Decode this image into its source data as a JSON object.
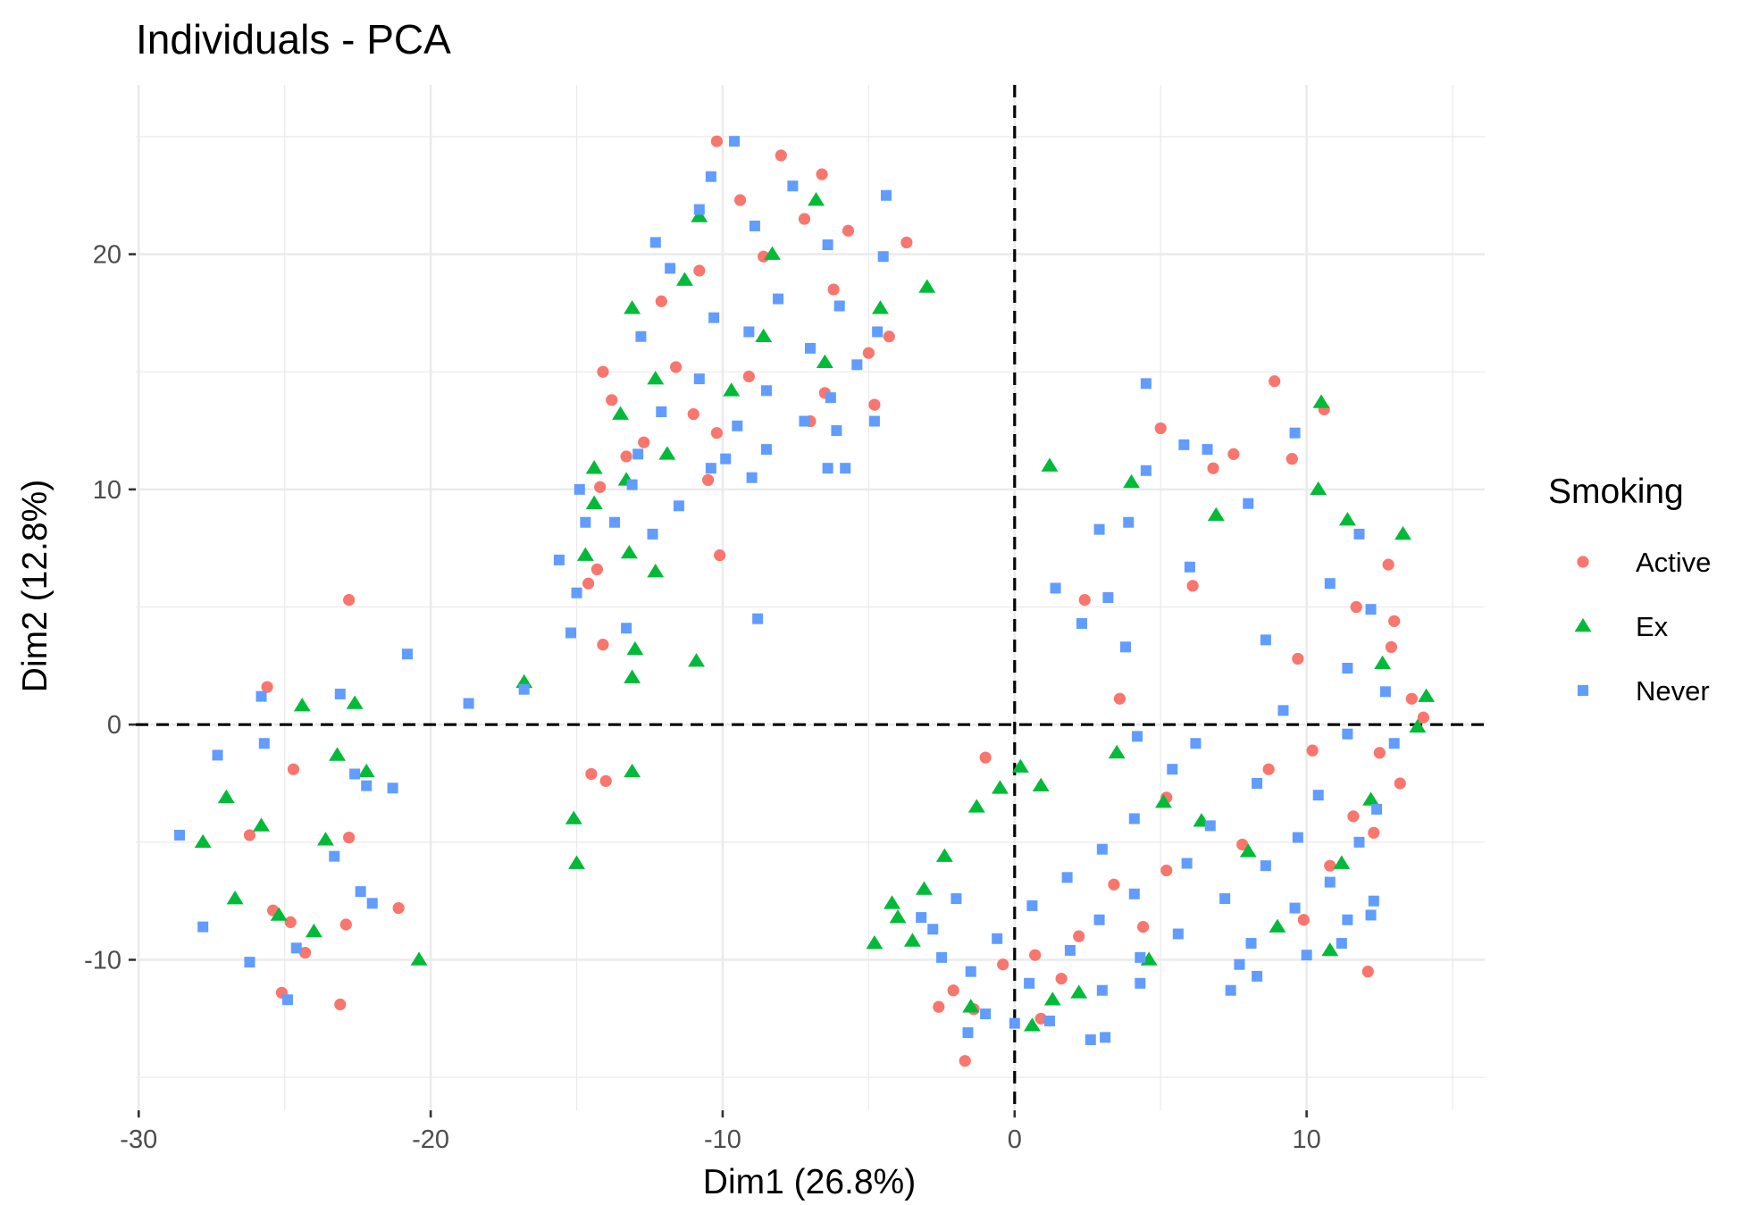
{
  "chart_data": {
    "type": "scatter",
    "title": "Individuals - PCA",
    "xlabel": "Dim1 (26.8%)",
    "ylabel": "Dim2 (12.8%)",
    "xlim": [
      -30.1,
      16.1
    ],
    "ylim": [
      -16.4,
      27.2
    ],
    "x_ticks": [
      -30,
      -20,
      -10,
      0,
      10
    ],
    "y_ticks": [
      -10,
      0,
      10,
      20
    ],
    "x_tick_labels": [
      "-30",
      "-20",
      "-10",
      "0",
      "10"
    ],
    "y_tick_labels": [
      "-10",
      "0",
      "10",
      "20"
    ],
    "grid": true,
    "reference_lines": {
      "x": 0,
      "y": 0,
      "style": "dashed"
    },
    "legend": {
      "title": "Smoking",
      "position": "right",
      "entries": [
        {
          "label": "Active",
          "shape": "circle",
          "color": "#F8766D"
        },
        {
          "label": "Ex",
          "shape": "triangle",
          "color": "#00BA38"
        },
        {
          "label": "Never",
          "shape": "square",
          "color": "#619CFF"
        }
      ]
    },
    "series": [
      {
        "name": "Active",
        "shape": "circle",
        "color": "#F8766D",
        "points": [
          [
            -25.6,
            1.6
          ],
          [
            -24.7,
            -1.9
          ],
          [
            -26.2,
            -4.7
          ],
          [
            -25.4,
            -7.9
          ],
          [
            -24.3,
            -9.7
          ],
          [
            -25.1,
            -11.4
          ],
          [
            -23.1,
            -11.9
          ],
          [
            -22.8,
            5.3
          ],
          [
            -22.8,
            -4.8
          ],
          [
            -22.9,
            -8.5
          ],
          [
            -21.1,
            -7.8
          ],
          [
            -24.8,
            -8.4
          ],
          [
            -10.2,
            24.8
          ],
          [
            -8.0,
            24.2
          ],
          [
            -6.6,
            23.4
          ],
          [
            -9.4,
            22.3
          ],
          [
            -7.2,
            21.5
          ],
          [
            -5.7,
            21.0
          ],
          [
            -8.6,
            19.9
          ],
          [
            -10.8,
            19.3
          ],
          [
            -6.2,
            18.5
          ],
          [
            -3.7,
            20.5
          ],
          [
            -12.1,
            18.0
          ],
          [
            -4.3,
            16.5
          ],
          [
            -5.0,
            15.8
          ],
          [
            -11.6,
            15.2
          ],
          [
            -9.1,
            14.8
          ],
          [
            -14.1,
            15.0
          ],
          [
            -13.8,
            13.8
          ],
          [
            -6.5,
            14.1
          ],
          [
            -4.8,
            13.6
          ],
          [
            -11.0,
            13.2
          ],
          [
            -10.2,
            12.4
          ],
          [
            -7.0,
            12.9
          ],
          [
            -12.7,
            12.0
          ],
          [
            -13.3,
            11.4
          ],
          [
            -10.5,
            10.4
          ],
          [
            -14.2,
            10.1
          ],
          [
            -10.1,
            7.2
          ],
          [
            -14.3,
            6.6
          ],
          [
            -14.6,
            6.0
          ],
          [
            -14.1,
            3.4
          ],
          [
            -14.5,
            -2.1
          ],
          [
            -14.0,
            -2.4
          ],
          [
            8.9,
            14.6
          ],
          [
            10.6,
            13.4
          ],
          [
            5.0,
            12.6
          ],
          [
            7.5,
            11.5
          ],
          [
            9.5,
            11.3
          ],
          [
            6.8,
            10.9
          ],
          [
            12.8,
            6.8
          ],
          [
            6.1,
            5.9
          ],
          [
            2.4,
            5.3
          ],
          [
            11.7,
            5.0
          ],
          [
            13.0,
            4.4
          ],
          [
            12.9,
            3.3
          ],
          [
            9.7,
            2.8
          ],
          [
            13.6,
            1.1
          ],
          [
            3.6,
            1.1
          ],
          [
            14.0,
            0.3
          ],
          [
            10.2,
            -1.1
          ],
          [
            12.5,
            -1.2
          ],
          [
            13.2,
            -2.5
          ],
          [
            11.6,
            -3.9
          ],
          [
            12.3,
            -4.6
          ],
          [
            7.8,
            -5.1
          ],
          [
            5.2,
            -6.2
          ],
          [
            3.4,
            -6.8
          ],
          [
            9.9,
            -8.3
          ],
          [
            4.4,
            -8.6
          ],
          [
            2.2,
            -9.0
          ],
          [
            0.7,
            -9.8
          ],
          [
            -0.4,
            -10.2
          ],
          [
            1.6,
            -10.8
          ],
          [
            -2.1,
            -11.3
          ],
          [
            -1.4,
            -12.1
          ],
          [
            -2.6,
            -12.0
          ],
          [
            0.9,
            -12.5
          ],
          [
            -1.7,
            -14.3
          ],
          [
            12.1,
            -10.5
          ],
          [
            -1.0,
            -1.4
          ],
          [
            5.2,
            -3.1
          ],
          [
            8.7,
            -1.9
          ],
          [
            10.8,
            -6.0
          ]
        ]
      },
      {
        "name": "Ex",
        "shape": "triangle",
        "color": "#00BA38",
        "points": [
          [
            -24.4,
            0.8
          ],
          [
            -22.6,
            0.9
          ],
          [
            -23.2,
            -1.3
          ],
          [
            -27.0,
            -3.1
          ],
          [
            -25.8,
            -4.3
          ],
          [
            -23.6,
            -4.9
          ],
          [
            -26.7,
            -7.4
          ],
          [
            -25.2,
            -8.1
          ],
          [
            -24.0,
            -8.8
          ],
          [
            -22.2,
            -2.0
          ],
          [
            -20.4,
            -10.0
          ],
          [
            -27.8,
            -5.0
          ],
          [
            -6.8,
            22.3
          ],
          [
            -8.3,
            20.0
          ],
          [
            -10.8,
            21.6
          ],
          [
            -3.0,
            18.6
          ],
          [
            -13.1,
            17.7
          ],
          [
            -11.3,
            18.9
          ],
          [
            -4.6,
            17.7
          ],
          [
            -8.6,
            16.5
          ],
          [
            -6.5,
            15.4
          ],
          [
            -12.3,
            14.7
          ],
          [
            -9.7,
            14.2
          ],
          [
            -13.5,
            13.2
          ],
          [
            -11.9,
            11.5
          ],
          [
            -14.4,
            10.9
          ],
          [
            -14.4,
            9.4
          ],
          [
            -13.3,
            10.4
          ],
          [
            -14.7,
            7.2
          ],
          [
            -13.2,
            7.3
          ],
          [
            -12.3,
            6.5
          ],
          [
            -13.0,
            3.2
          ],
          [
            -10.9,
            2.7
          ],
          [
            -13.1,
            2.0
          ],
          [
            -16.8,
            1.8
          ],
          [
            -13.1,
            -2.0
          ],
          [
            -15.1,
            -4.0
          ],
          [
            -15.0,
            -5.9
          ],
          [
            10.5,
            13.7
          ],
          [
            1.2,
            11.0
          ],
          [
            13.3,
            8.1
          ],
          [
            10.4,
            10.0
          ],
          [
            4.0,
            10.3
          ],
          [
            11.4,
            8.7
          ],
          [
            6.9,
            8.9
          ],
          [
            14.1,
            1.2
          ],
          [
            12.6,
            2.6
          ],
          [
            13.8,
            -0.1
          ],
          [
            -4.8,
            -9.3
          ],
          [
            -4.0,
            -8.2
          ],
          [
            -3.5,
            -9.2
          ],
          [
            -4.2,
            -7.6
          ],
          [
            -2.4,
            -5.6
          ],
          [
            -3.1,
            -7.0
          ],
          [
            -1.3,
            -3.5
          ],
          [
            -0.5,
            -2.7
          ],
          [
            0.2,
            -1.8
          ],
          [
            0.9,
            -2.6
          ],
          [
            3.5,
            -1.2
          ],
          [
            5.1,
            -3.3
          ],
          [
            6.4,
            -4.1
          ],
          [
            8.0,
            -5.4
          ],
          [
            11.2,
            -5.9
          ],
          [
            12.2,
            -3.2
          ],
          [
            10.8,
            -9.6
          ],
          [
            9.0,
            -8.6
          ],
          [
            4.6,
            -10.0
          ],
          [
            2.2,
            -11.4
          ],
          [
            -1.5,
            -12.0
          ],
          [
            0.6,
            -12.8
          ],
          [
            1.3,
            -11.7
          ]
        ]
      },
      {
        "name": "Never",
        "shape": "square",
        "color": "#619CFF",
        "points": [
          [
            -28.6,
            -4.7
          ],
          [
            -27.3,
            -1.3
          ],
          [
            -25.8,
            1.2
          ],
          [
            -25.7,
            -0.8
          ],
          [
            -23.1,
            1.3
          ],
          [
            -22.6,
            -2.1
          ],
          [
            -22.2,
            -2.6
          ],
          [
            -21.3,
            -2.7
          ],
          [
            -23.3,
            -5.6
          ],
          [
            -22.4,
            -7.1
          ],
          [
            -27.8,
            -8.6
          ],
          [
            -26.2,
            -10.1
          ],
          [
            -24.6,
            -9.5
          ],
          [
            -24.9,
            -11.7
          ],
          [
            -20.8,
            3.0
          ],
          [
            -18.7,
            0.9
          ],
          [
            -16.8,
            1.5
          ],
          [
            -22.0,
            -7.6
          ],
          [
            -9.6,
            24.8
          ],
          [
            -7.6,
            22.9
          ],
          [
            -10.4,
            23.3
          ],
          [
            -4.4,
            22.5
          ],
          [
            -10.8,
            21.9
          ],
          [
            -12.3,
            20.5
          ],
          [
            -8.9,
            21.2
          ],
          [
            -6.4,
            20.4
          ],
          [
            -4.5,
            19.9
          ],
          [
            -11.8,
            19.4
          ],
          [
            -10.3,
            17.3
          ],
          [
            -8.1,
            18.1
          ],
          [
            -6.0,
            17.8
          ],
          [
            -4.7,
            16.7
          ],
          [
            -12.8,
            16.5
          ],
          [
            -9.1,
            16.7
          ],
          [
            -7.0,
            16.0
          ],
          [
            -5.4,
            15.3
          ],
          [
            -10.8,
            14.7
          ],
          [
            -8.5,
            14.2
          ],
          [
            -6.3,
            13.9
          ],
          [
            -12.1,
            13.3
          ],
          [
            -9.5,
            12.7
          ],
          [
            -7.2,
            12.9
          ],
          [
            -6.1,
            12.5
          ],
          [
            -4.8,
            12.9
          ],
          [
            -12.9,
            11.5
          ],
          [
            -10.4,
            10.9
          ],
          [
            -8.5,
            11.7
          ],
          [
            -6.4,
            10.9
          ],
          [
            -13.1,
            10.2
          ],
          [
            -11.5,
            9.3
          ],
          [
            -9.0,
            10.5
          ],
          [
            -14.9,
            10.0
          ],
          [
            -14.7,
            8.6
          ],
          [
            -13.7,
            8.6
          ],
          [
            -12.4,
            8.1
          ],
          [
            -15.6,
            7.0
          ],
          [
            -15.0,
            5.6
          ],
          [
            -15.2,
            3.9
          ],
          [
            -13.3,
            4.1
          ],
          [
            -8.8,
            4.5
          ],
          [
            -9.9,
            11.3
          ],
          [
            -5.8,
            10.9
          ],
          [
            4.5,
            14.5
          ],
          [
            5.8,
            11.9
          ],
          [
            6.6,
            11.7
          ],
          [
            9.6,
            12.4
          ],
          [
            4.5,
            10.8
          ],
          [
            3.9,
            8.6
          ],
          [
            2.9,
            8.3
          ],
          [
            8.0,
            9.4
          ],
          [
            11.8,
            8.1
          ],
          [
            3.2,
            5.4
          ],
          [
            1.4,
            5.8
          ],
          [
            2.3,
            4.3
          ],
          [
            6.0,
            6.7
          ],
          [
            10.8,
            6.0
          ],
          [
            12.2,
            4.9
          ],
          [
            3.8,
            3.3
          ],
          [
            8.6,
            3.6
          ],
          [
            11.4,
            2.4
          ],
          [
            12.7,
            1.4
          ],
          [
            4.2,
            -0.5
          ],
          [
            6.2,
            -0.8
          ],
          [
            9.2,
            0.6
          ],
          [
            11.4,
            -0.4
          ],
          [
            13.0,
            -0.8
          ],
          [
            5.4,
            -1.9
          ],
          [
            8.3,
            -2.5
          ],
          [
            10.4,
            -3.0
          ],
          [
            12.4,
            -3.6
          ],
          [
            4.1,
            -4.0
          ],
          [
            6.7,
            -4.3
          ],
          [
            9.7,
            -4.8
          ],
          [
            11.8,
            -5.0
          ],
          [
            3.0,
            -5.3
          ],
          [
            5.9,
            -5.9
          ],
          [
            8.6,
            -6.0
          ],
          [
            10.8,
            -6.7
          ],
          [
            1.8,
            -6.5
          ],
          [
            4.1,
            -7.2
          ],
          [
            7.2,
            -7.4
          ],
          [
            9.6,
            -7.8
          ],
          [
            11.4,
            -8.3
          ],
          [
            -2.0,
            -7.4
          ],
          [
            0.6,
            -7.7
          ],
          [
            2.9,
            -8.3
          ],
          [
            5.6,
            -8.9
          ],
          [
            8.1,
            -9.3
          ],
          [
            10.0,
            -9.8
          ],
          [
            -2.8,
            -8.7
          ],
          [
            -0.6,
            -9.1
          ],
          [
            1.9,
            -9.6
          ],
          [
            4.3,
            -9.9
          ],
          [
            7.7,
            -10.2
          ],
          [
            -1.5,
            -10.5
          ],
          [
            0.5,
            -11.0
          ],
          [
            3.0,
            -11.3
          ],
          [
            7.4,
            -11.3
          ],
          [
            -1.0,
            -12.3
          ],
          [
            1.2,
            -12.6
          ],
          [
            3.1,
            -13.3
          ],
          [
            -1.6,
            -13.1
          ],
          [
            0.0,
            -12.7
          ],
          [
            2.6,
            -13.4
          ],
          [
            4.3,
            -11.0
          ],
          [
            -3.2,
            -8.2
          ],
          [
            -2.5,
            -9.9
          ],
          [
            12.3,
            -7.5
          ],
          [
            12.2,
            -8.1
          ],
          [
            11.2,
            -9.3
          ],
          [
            8.3,
            -10.7
          ]
        ]
      }
    ]
  }
}
